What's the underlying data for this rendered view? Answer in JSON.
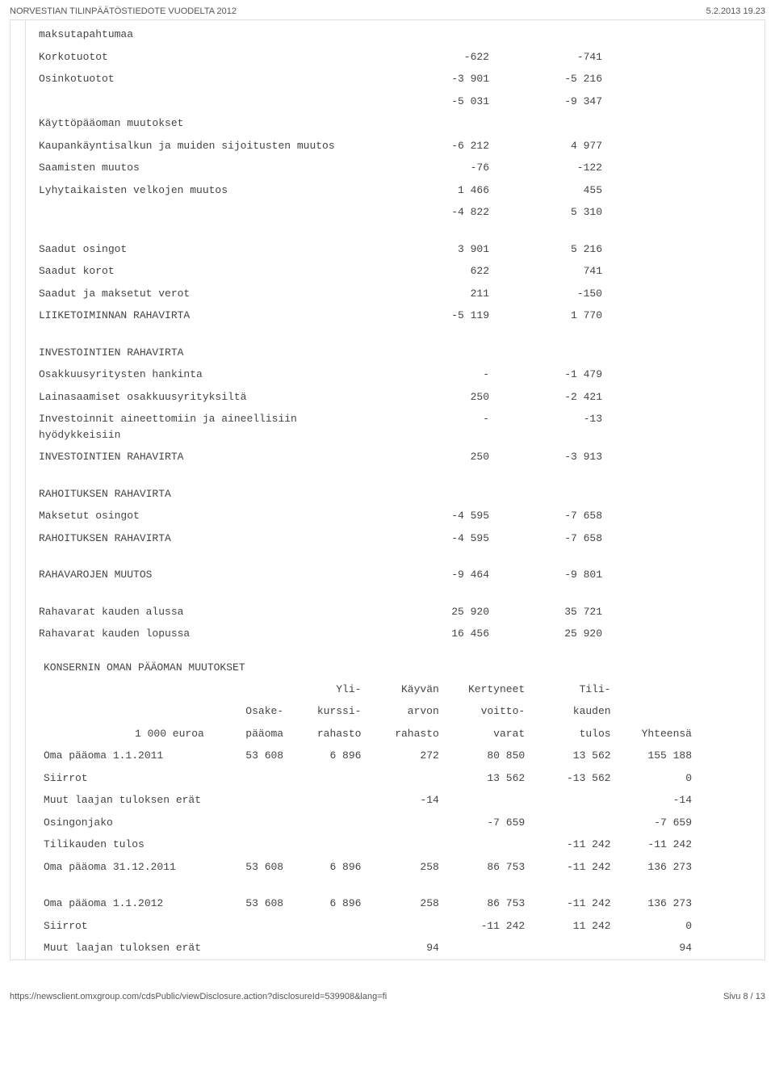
{
  "header": {
    "title": "NORVESTIAN TILINPÄÄTÖSTIEDOTE VUODELTA 2012",
    "datetime": "5.2.2013 19.23"
  },
  "cashflow": {
    "rows": [
      {
        "label": "maksutapahtumaa",
        "c1": "",
        "c2": ""
      },
      {
        "label": "Korkotuotot",
        "c1": "-622",
        "c2": "-741"
      },
      {
        "label": "Osinkotuotot",
        "c1": "-3 901",
        "c2": "-5 216"
      },
      {
        "label": "",
        "c1": "-5 031",
        "c2": "-9 347"
      },
      {
        "label": "Käyttöpääoman muutokset",
        "c1": "",
        "c2": ""
      },
      {
        "label": "Kaupankäyntisalkun ja muiden sijoitusten muutos",
        "c1": "-6 212",
        "c2": "4 977"
      },
      {
        "label": "Saamisten muutos",
        "c1": "-76",
        "c2": "-122"
      },
      {
        "label": "Lyhytaikaisten velkojen muutos",
        "c1": "1 466",
        "c2": "455"
      },
      {
        "label": "",
        "c1": "-4 822",
        "c2": "5 310"
      },
      {
        "spacer": true
      },
      {
        "label": "Saadut osingot",
        "c1": "3 901",
        "c2": "5 216"
      },
      {
        "label": "Saadut korot",
        "c1": "622",
        "c2": "741"
      },
      {
        "label": "Saadut ja maksetut verot",
        "c1": "211",
        "c2": "-150"
      },
      {
        "label": "LIIKETOIMINNAN RAHAVIRTA",
        "c1": "-5 119",
        "c2": "1 770"
      },
      {
        "spacer": true
      },
      {
        "label": "INVESTOINTIEN RAHAVIRTA",
        "c1": "",
        "c2": ""
      },
      {
        "label": "Osakkuusyritysten hankinta",
        "c1": "-",
        "c2": "-1 479"
      },
      {
        "label": "Lainasaamiset osakkuusyrityksiltä",
        "c1": "250",
        "c2": "-2 421"
      },
      {
        "label": "Investoinnit aineettomiin ja aineellisiin hyödykkeisiin",
        "c1": "-",
        "c2": "-13"
      },
      {
        "label": "INVESTOINTIEN RAHAVIRTA",
        "c1": "250",
        "c2": "-3 913"
      },
      {
        "spacer": true
      },
      {
        "label": "RAHOITUKSEN RAHAVIRTA",
        "c1": "",
        "c2": ""
      },
      {
        "label": "Maksetut osingot",
        "c1": "-4 595",
        "c2": "-7 658"
      },
      {
        "label": "RAHOITUKSEN RAHAVIRTA",
        "c1": "-4 595",
        "c2": "-7 658"
      },
      {
        "spacer": true
      },
      {
        "label": "RAHAVAROJEN MUUTOS",
        "c1": "-9 464",
        "c2": "-9 801"
      },
      {
        "spacer": true
      },
      {
        "label": "Rahavarat kauden alussa",
        "c1": "25 920",
        "c2": "35 721"
      },
      {
        "label": "Rahavarat kauden lopussa",
        "c1": "16 456",
        "c2": "25 920"
      }
    ]
  },
  "equity": {
    "title": "KONSERNIN OMAN PÄÄOMAN MUUTOKSET",
    "header": [
      [
        "",
        "",
        "Yli-",
        "Käyvän",
        "Kertyneet",
        "Tili-",
        ""
      ],
      [
        "",
        "Osake-",
        "kurssi-",
        "arvon",
        "voitto-",
        "kauden",
        ""
      ],
      [
        "1 000 euroa",
        "pääoma",
        "rahasto",
        "rahasto",
        "varat",
        "tulos",
        "Yhteensä"
      ]
    ],
    "rows": [
      {
        "label": "Oma pääoma 1.1.2011",
        "v": [
          "53 608",
          "6 896",
          "272",
          "80 850",
          "13 562",
          "155 188"
        ]
      },
      {
        "label": "Siirrot",
        "v": [
          "",
          "",
          "",
          "13 562",
          "-13 562",
          "0"
        ]
      },
      {
        "label": "Muut laajan tuloksen erät",
        "v": [
          "",
          "",
          "-14",
          "",
          "",
          "-14"
        ]
      },
      {
        "label": "Osingonjako",
        "v": [
          "",
          "",
          "",
          "-7 659",
          "",
          "-7 659"
        ]
      },
      {
        "label": "Tilikauden tulos",
        "v": [
          "",
          "",
          "",
          "",
          "-11 242",
          "-11 242"
        ]
      },
      {
        "label": "Oma pääoma 31.12.2011",
        "v": [
          "53 608",
          "6 896",
          "258",
          "86 753",
          "-11 242",
          "136 273"
        ]
      },
      {
        "spacer": true
      },
      {
        "label": "Oma pääoma 1.1.2012",
        "v": [
          "53 608",
          "6 896",
          "258",
          "86 753",
          "-11 242",
          "136 273"
        ]
      },
      {
        "label": "Siirrot",
        "v": [
          "",
          "",
          "",
          "-11 242",
          "11 242",
          "0"
        ]
      },
      {
        "label": "Muut laajan tuloksen erät",
        "v": [
          "",
          "",
          "94",
          "",
          "",
          "94"
        ]
      }
    ]
  },
  "footer": {
    "url": "https://newsclient.omxgroup.com/cdsPublic/viewDisclosure.action?disclosureId=539908&lang=fi",
    "page": "Sivu 8 / 13"
  }
}
